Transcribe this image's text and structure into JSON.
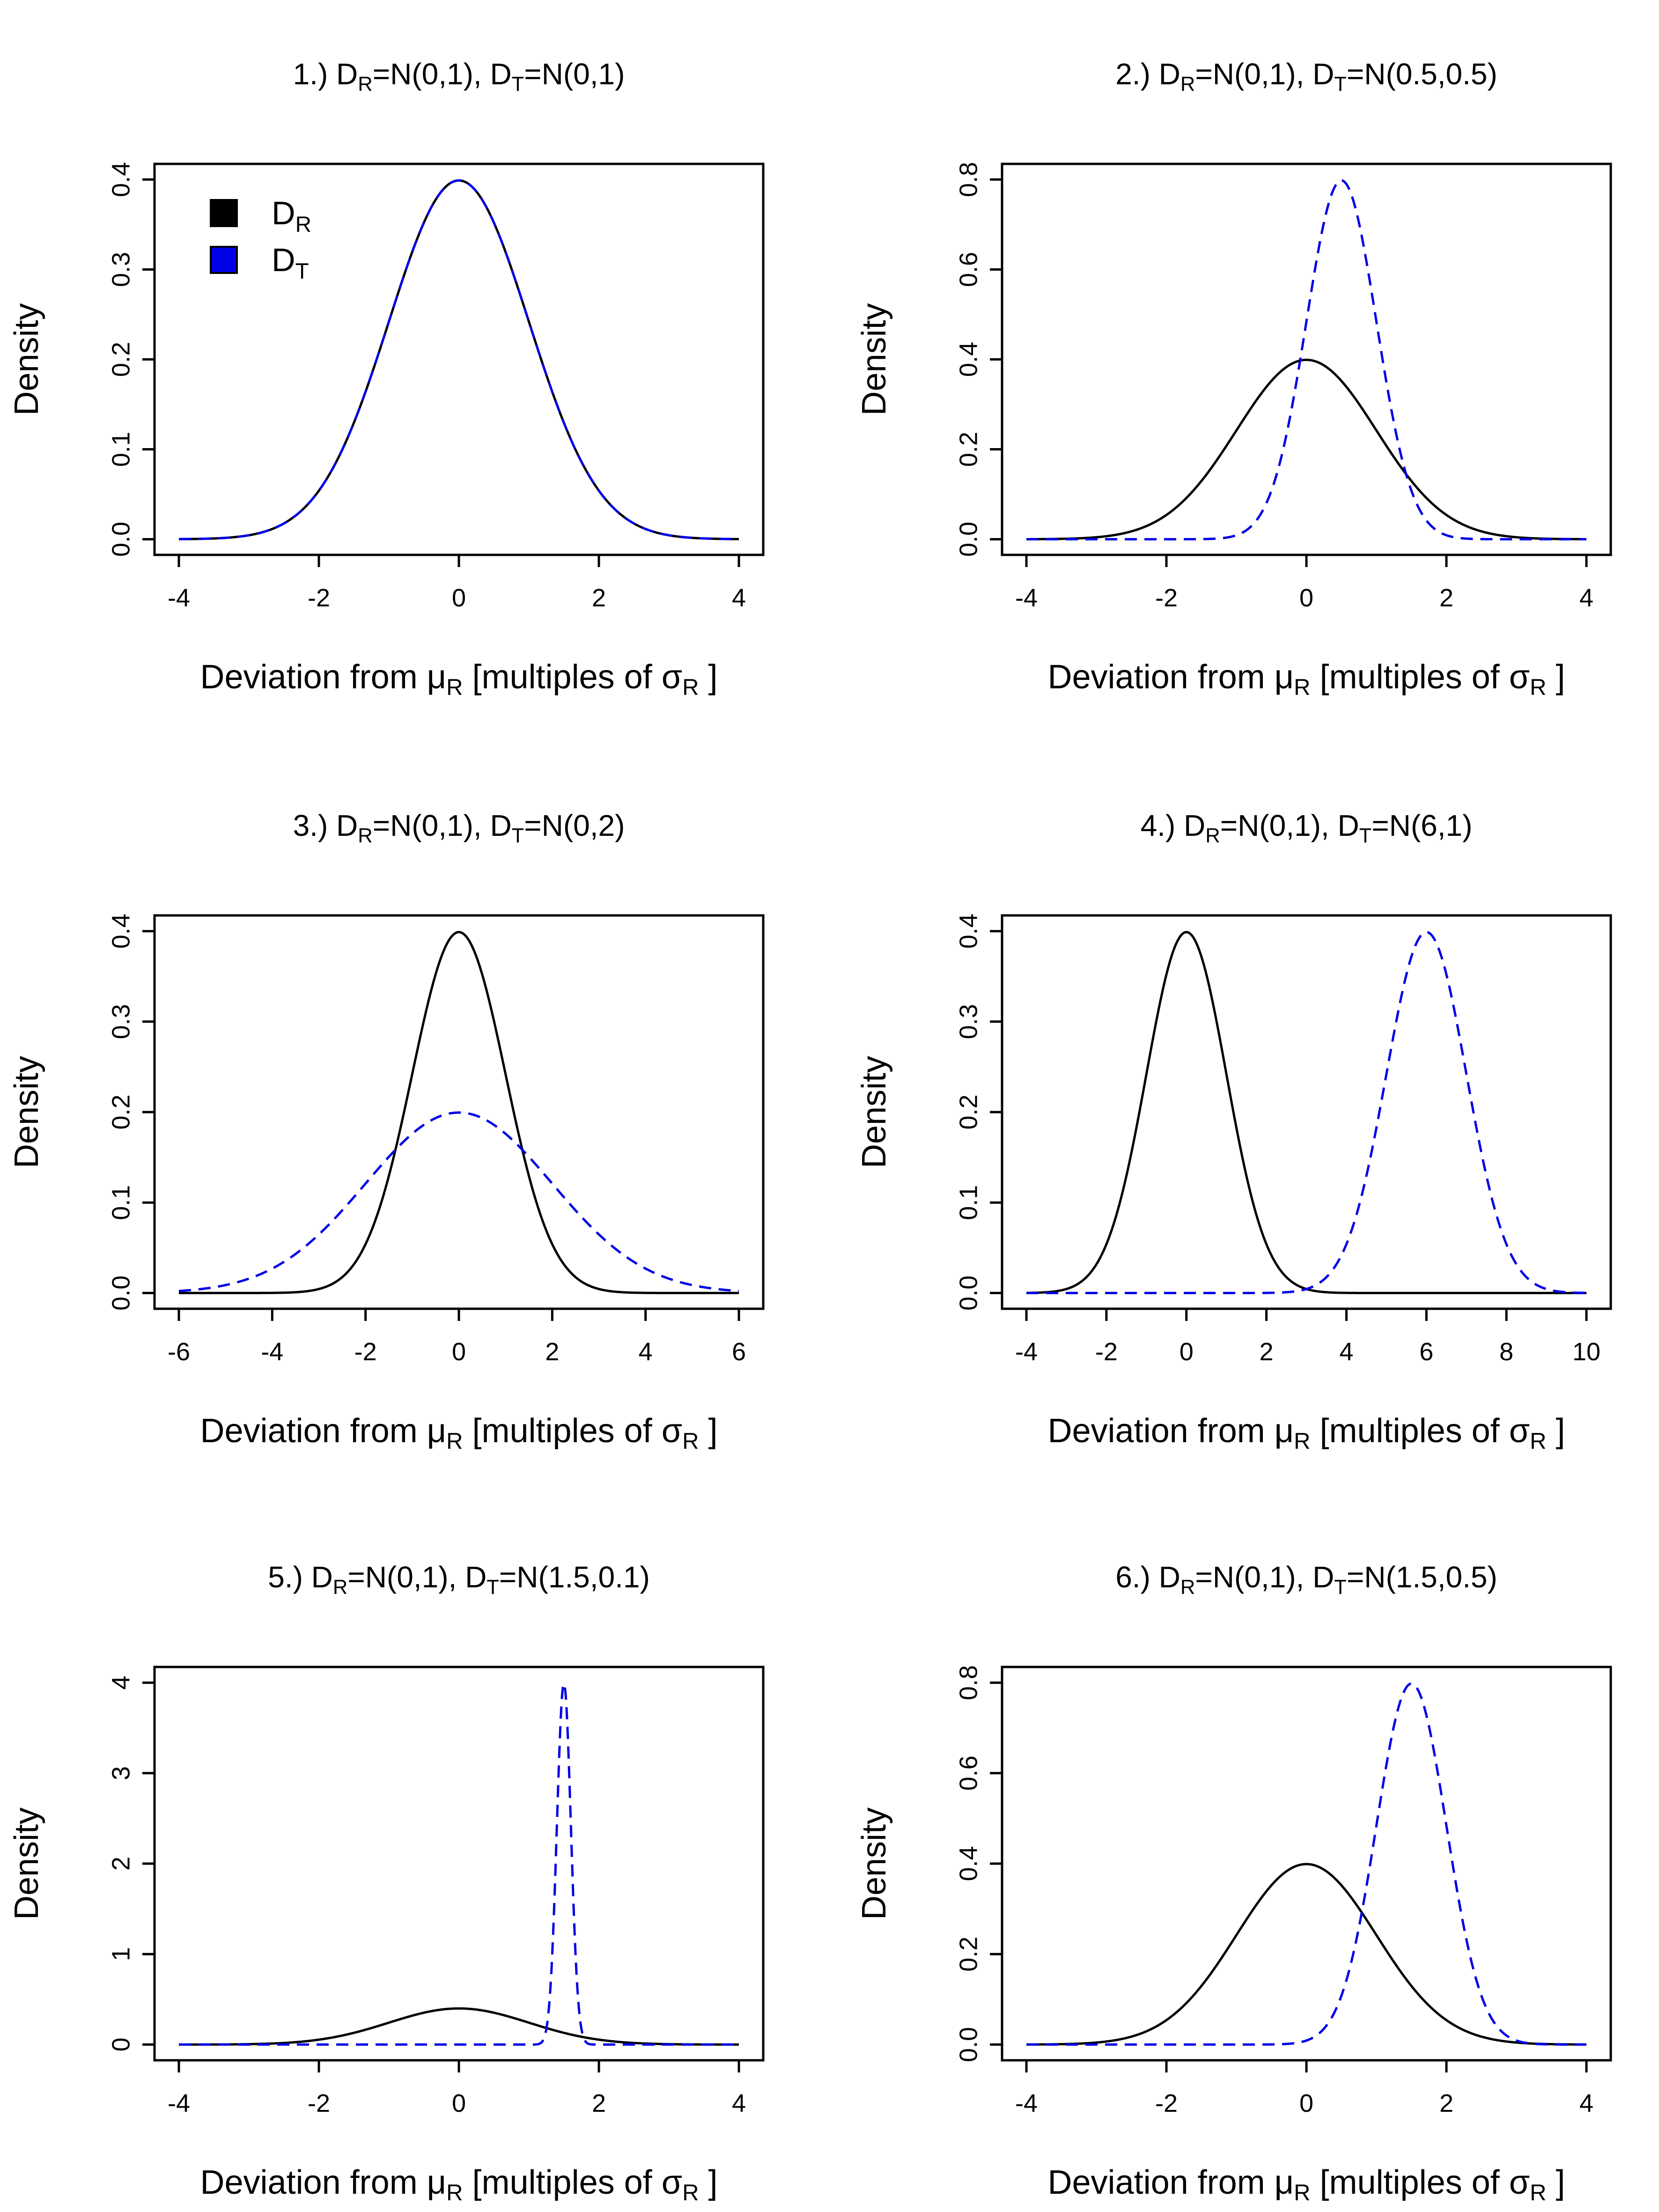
{
  "axis_labels": {
    "x_prefix": "Deviation from ",
    "mu": "μ",
    "x_mid": "  [multiples of ",
    "sigma": "σ",
    "x_suffix": " ]",
    "sub_r": "R",
    "y": "Density"
  },
  "legend": {
    "entries": [
      {
        "base": "D",
        "sub": "R",
        "color": "#000000"
      },
      {
        "base": "D",
        "sub": "T",
        "color": "#0000e6"
      }
    ]
  },
  "colors": {
    "reference": "#000000",
    "test": "#0000e6"
  },
  "chart_data": [
    {
      "type": "line",
      "title_parts": {
        "number": "1.)",
        "dr_dist": "=N(0,1),",
        "dt_dist": "=N(0,1)"
      },
      "series": [
        {
          "name": "D_R",
          "mean": 0,
          "sd": 1,
          "style": "solid"
        },
        {
          "name": "D_T",
          "mean": 0,
          "sd": 1,
          "style": "dashed"
        }
      ],
      "xlim": [
        -4,
        4
      ],
      "ylim": [
        0,
        0.4
      ],
      "xticks": [
        "-4",
        "-2",
        "0",
        "2",
        "4"
      ],
      "yticks": [
        "0.0",
        "0.1",
        "0.2",
        "0.3",
        "0.4"
      ],
      "legend": true
    },
    {
      "type": "line",
      "title_parts": {
        "number": "2.)",
        "dr_dist": "=N(0,1),",
        "dt_dist": "=N(0.5,0.5)"
      },
      "series": [
        {
          "name": "D_R",
          "mean": 0,
          "sd": 1,
          "style": "solid"
        },
        {
          "name": "D_T",
          "mean": 0.5,
          "sd": 0.5,
          "style": "dashed"
        }
      ],
      "xlim": [
        -4,
        4
      ],
      "ylim": [
        0,
        0.8
      ],
      "xticks": [
        "-4",
        "-2",
        "0",
        "2",
        "4"
      ],
      "yticks": [
        "0.0",
        "0.2",
        "0.4",
        "0.6",
        "0.8"
      ],
      "legend": false
    },
    {
      "type": "line",
      "title_parts": {
        "number": "3.)",
        "dr_dist": "=N(0,1),",
        "dt_dist": "=N(0,2)"
      },
      "series": [
        {
          "name": "D_R",
          "mean": 0,
          "sd": 1,
          "style": "solid"
        },
        {
          "name": "D_T",
          "mean": 0,
          "sd": 2,
          "style": "dashed"
        }
      ],
      "xlim": [
        -6,
        6
      ],
      "ylim": [
        0,
        0.4
      ],
      "xticks": [
        "-6",
        "-4",
        "-2",
        "0",
        "2",
        "4",
        "6"
      ],
      "yticks": [
        "0.0",
        "0.1",
        "0.2",
        "0.3",
        "0.4"
      ],
      "legend": false
    },
    {
      "type": "line",
      "title_parts": {
        "number": "4.)",
        "dr_dist": "=N(0,1),",
        "dt_dist": "=N(6,1)"
      },
      "series": [
        {
          "name": "D_R",
          "mean": 0,
          "sd": 1,
          "style": "solid"
        },
        {
          "name": "D_T",
          "mean": 6,
          "sd": 1,
          "style": "dashed"
        }
      ],
      "xlim": [
        -4,
        10
      ],
      "ylim": [
        0,
        0.4
      ],
      "xticks": [
        "-4",
        "-2",
        "0",
        "2",
        "4",
        "6",
        "8",
        "10"
      ],
      "yticks": [
        "0.0",
        "0.1",
        "0.2",
        "0.3",
        "0.4"
      ],
      "legend": false
    },
    {
      "type": "line",
      "title_parts": {
        "number": "5.)",
        "dr_dist": "=N(0,1),",
        "dt_dist": "=N(1.5,0.1)"
      },
      "series": [
        {
          "name": "D_R",
          "mean": 0,
          "sd": 1,
          "style": "solid"
        },
        {
          "name": "D_T",
          "mean": 1.5,
          "sd": 0.1,
          "style": "dashed"
        }
      ],
      "xlim": [
        -4,
        4
      ],
      "ylim": [
        0,
        4
      ],
      "xticks": [
        "-4",
        "-2",
        "0",
        "2",
        "4"
      ],
      "yticks": [
        "0",
        "1",
        "2",
        "3",
        "4"
      ],
      "legend": false
    },
    {
      "type": "line",
      "title_parts": {
        "number": "6.)",
        "dr_dist": "=N(0,1),",
        "dt_dist": "=N(1.5,0.5)"
      },
      "series": [
        {
          "name": "D_R",
          "mean": 0,
          "sd": 1,
          "style": "solid"
        },
        {
          "name": "D_T",
          "mean": 1.5,
          "sd": 0.5,
          "style": "dashed"
        }
      ],
      "xlim": [
        -4,
        4
      ],
      "ylim": [
        0,
        0.8
      ],
      "xticks": [
        "-4",
        "-2",
        "0",
        "2",
        "4"
      ],
      "yticks": [
        "0.0",
        "0.2",
        "0.4",
        "0.6",
        "0.8"
      ],
      "legend": false
    }
  ]
}
